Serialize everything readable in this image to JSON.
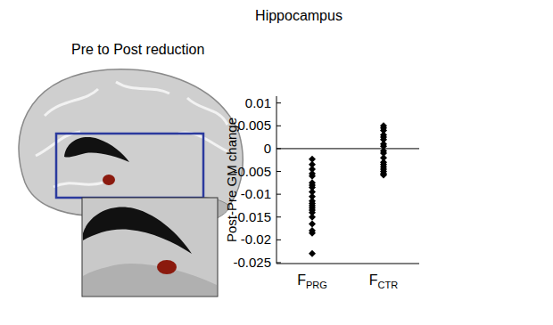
{
  "chart_data": {
    "type": "scatter",
    "title": "Hippocampus",
    "subtitle": "Pre to Post reduction",
    "y_label": "Post-Pre GM change",
    "categories": [
      "FPRG",
      "FCTR"
    ],
    "values": [
      [
        -0.0023,
        -0.0035,
        -0.0045,
        -0.0055,
        -0.006,
        -0.0075,
        -0.008,
        -0.0085,
        -0.0095,
        -0.0105,
        -0.0115,
        -0.012,
        -0.0125,
        -0.013,
        -0.0135,
        -0.014,
        -0.015,
        -0.0165,
        -0.018,
        -0.0185,
        -0.023
      ],
      [
        0.005,
        0.0045,
        0.004,
        0.003,
        0.0025,
        0.002,
        0.001,
        0.0005,
        -0.0005,
        -0.001,
        -0.002,
        -0.003,
        -0.0035,
        -0.004,
        -0.0045,
        -0.005,
        -0.0055,
        -0.0058
      ]
    ],
    "hline": 0,
    "color": "#000000",
    "marker": "diamond",
    "ylim": [
      -0.0252,
      0.0115
    ],
    "yticks": [
      0.01,
      0.005,
      0,
      -0.005,
      -0.01,
      -0.015,
      -0.02,
      -0.025
    ],
    "grid": false
  }
}
